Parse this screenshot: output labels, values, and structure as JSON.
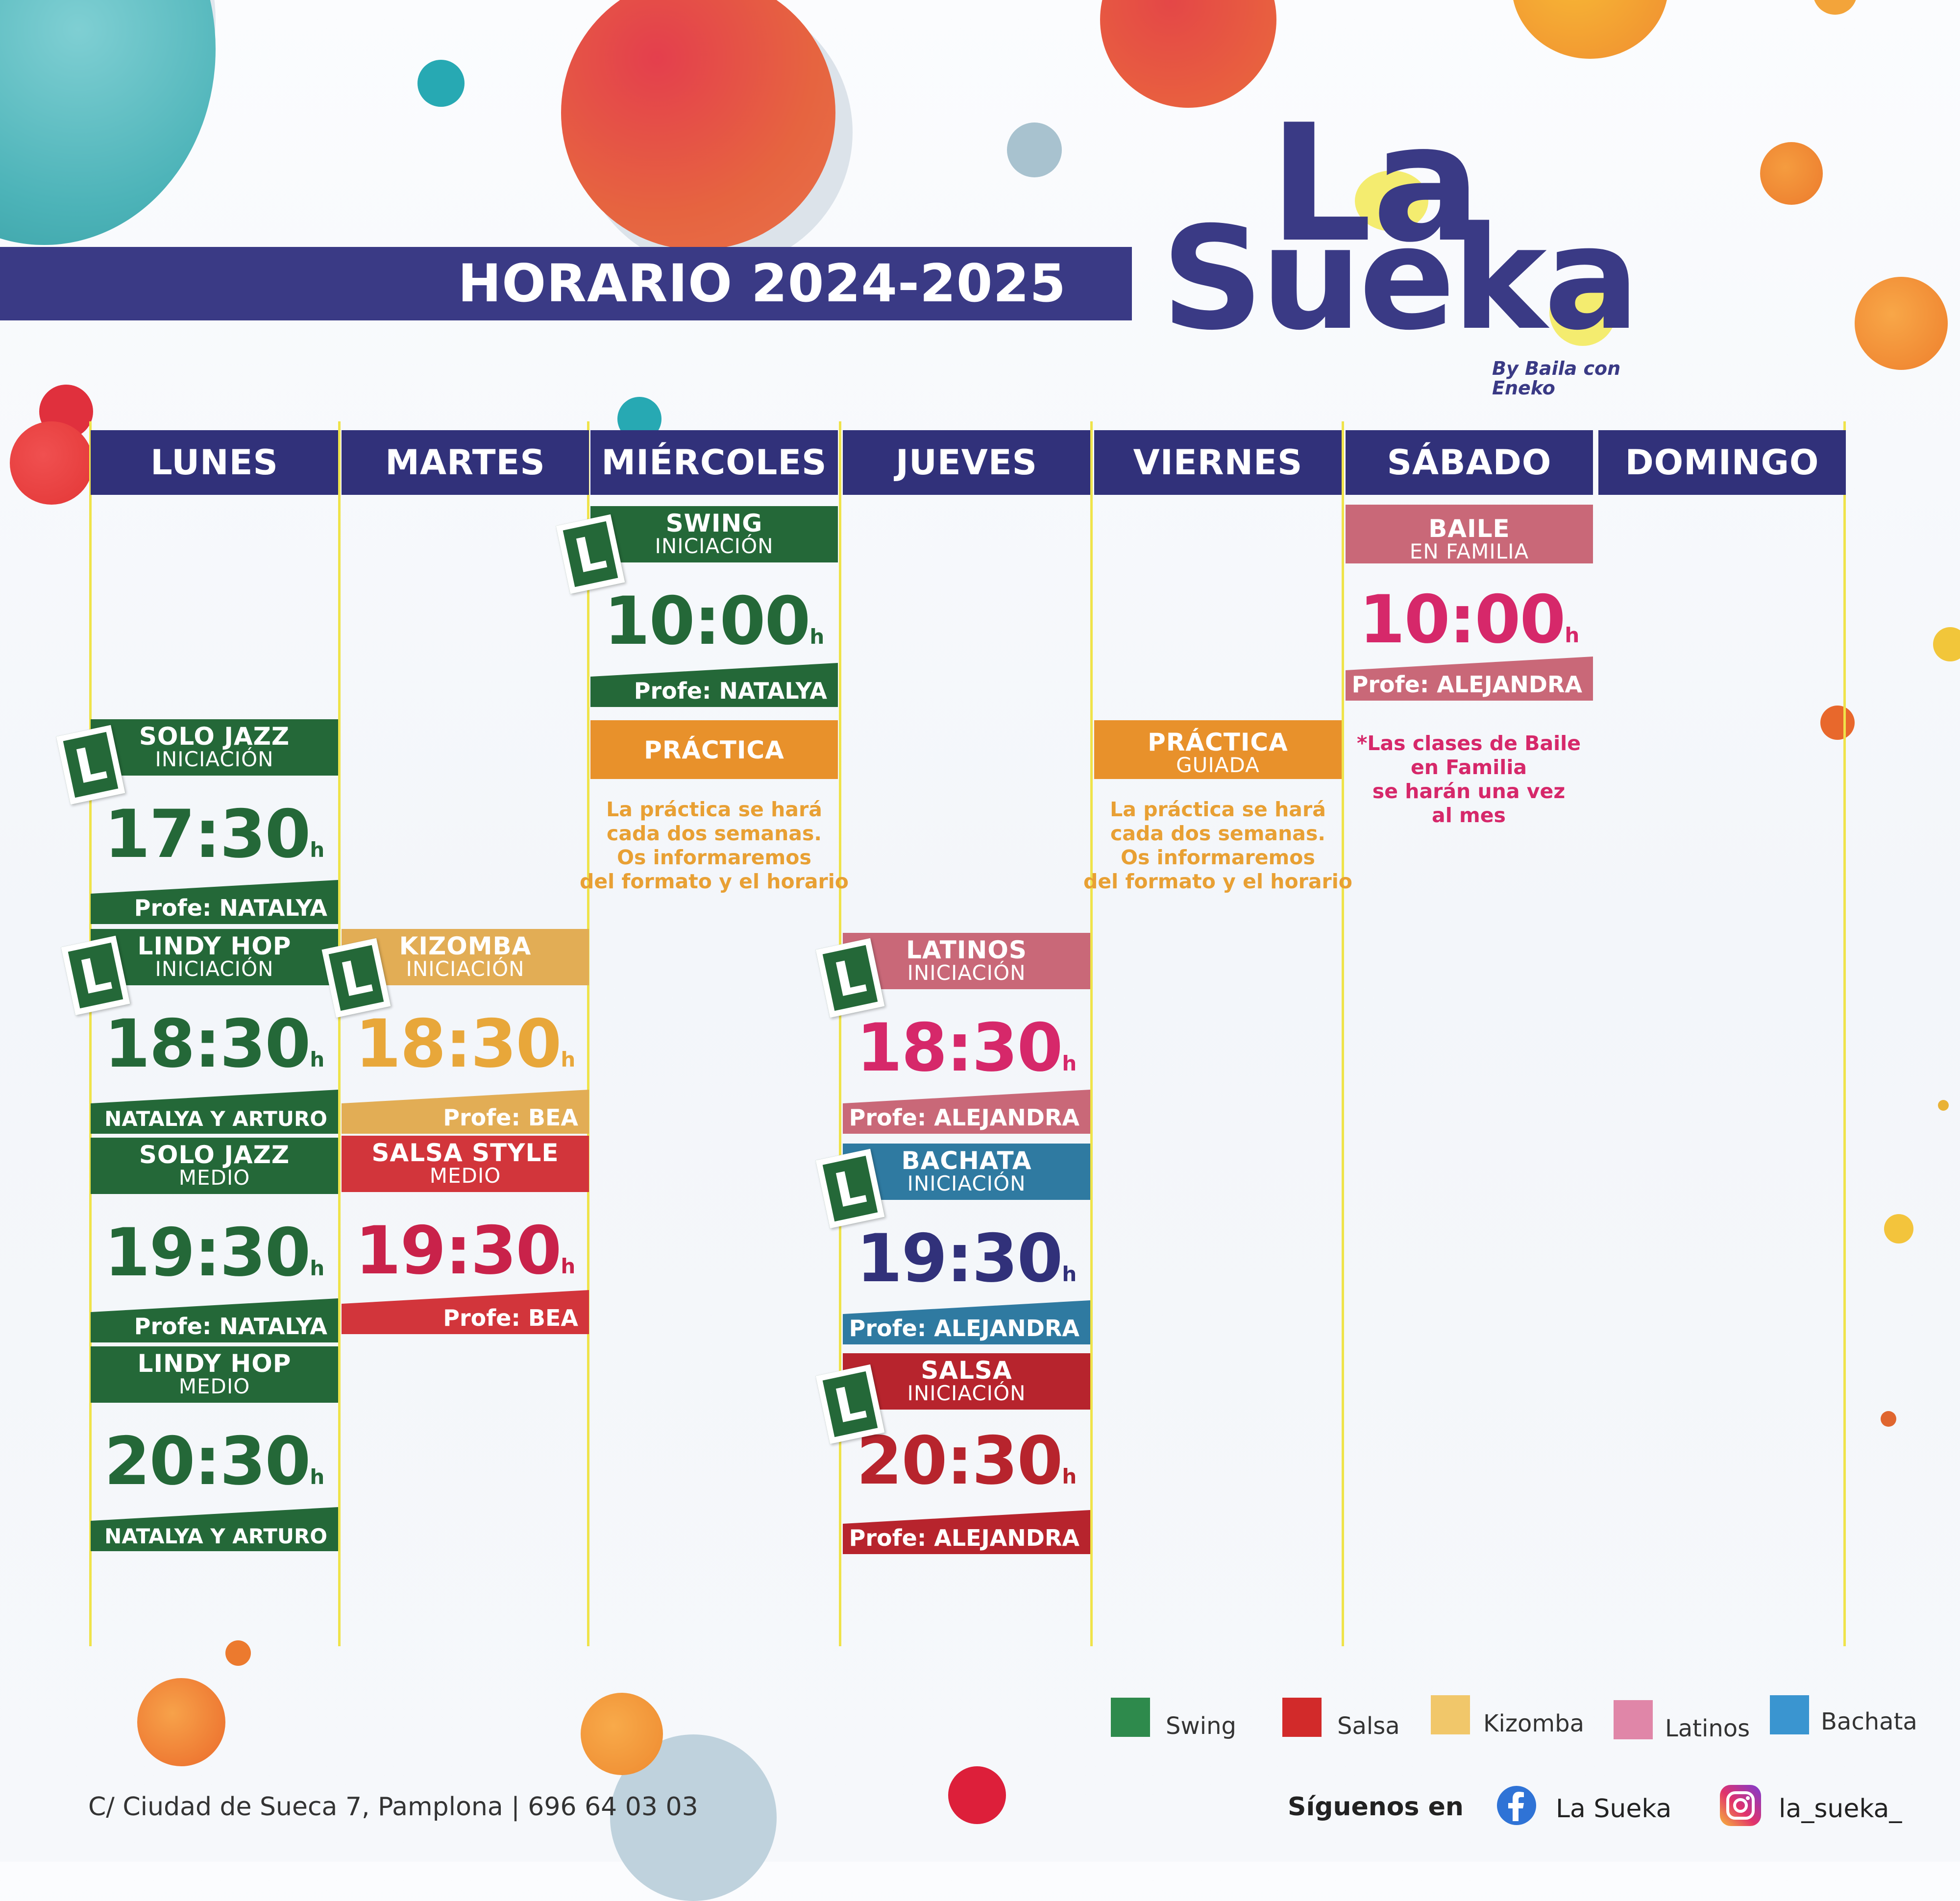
{
  "title": "HORARIO 2024-2025",
  "logo": {
    "line1": "La",
    "line2": "Sueka",
    "tagline": "By Baila con Eneko"
  },
  "days": [
    "LUNES",
    "MARTES",
    "MIÉRCOLES",
    "JUEVES",
    "VIERNES",
    "SÁBADO",
    "DOMINGO"
  ],
  "level_badge": "L",
  "classes": {
    "lun_1": {
      "name": "SOLO JAZZ",
      "level": "INICIACIÓN",
      "time": "17:30",
      "unit": "h",
      "teacher": "Profe: NATALYA"
    },
    "lun_2": {
      "name": "LINDY HOP",
      "level": "INICIACIÓN",
      "time": "18:30",
      "unit": "h",
      "teacher": "NATALYA Y ARTURO"
    },
    "lun_3": {
      "name": "SOLO JAZZ",
      "level": "MEDIO",
      "time": "19:30",
      "unit": "h",
      "teacher": "Profe: NATALYA"
    },
    "lun_4": {
      "name": "LINDY HOP",
      "level": "MEDIO",
      "time": "20:30",
      "unit": "h",
      "teacher": "NATALYA Y ARTURO"
    },
    "mar_1": {
      "name": "KIZOMBA",
      "level": "INICIACIÓN",
      "time": "18:30",
      "unit": "h",
      "teacher": "Profe: BEA"
    },
    "mar_2": {
      "name": "SALSA STYLE",
      "level": "MEDIO",
      "time": "19:30",
      "unit": "h",
      "teacher": "Profe: BEA"
    },
    "mie_1": {
      "name": "SWING",
      "level": "INICIACIÓN",
      "time": "10:00",
      "unit": "h",
      "teacher": "Profe: NATALYA"
    },
    "jue_1": {
      "name": "LATINOS",
      "level": "INICIACIÓN",
      "time": "18:30",
      "unit": "h",
      "teacher": "Profe: ALEJANDRA"
    },
    "jue_2": {
      "name": "BACHATA",
      "level": "INICIACIÓN",
      "time": "19:30",
      "unit": "h",
      "teacher": "Profe: ALEJANDRA"
    },
    "jue_3": {
      "name": "SALSA",
      "level": "INICIACIÓN",
      "time": "20:30",
      "unit": "h",
      "teacher": "Profe: ALEJANDRA"
    },
    "sab_1": {
      "name": "BAILE",
      "level": "EN FAMILIA",
      "time": "10:00",
      "unit": "h",
      "teacher": "Profe:  ALEJANDRA"
    }
  },
  "practica_mie": {
    "name": "PRÁCTICA",
    "note": [
      "La práctica se hará",
      "cada dos semanas.",
      "Os informaremos",
      "del formato y el horario"
    ]
  },
  "practica_vie": {
    "name": "PRÁCTICA",
    "level": "GUIADA",
    "note": [
      "La práctica se hará",
      "cada dos semanas.",
      "Os informaremos",
      "del formato y el horario"
    ]
  },
  "sab_note": [
    "*Las clases de Baile",
    "en Familia",
    "se harán una vez",
    "al mes"
  ],
  "legend": [
    {
      "label": "Swing",
      "color": "#2e8a4c"
    },
    {
      "label": "Salsa",
      "color": "#d22a2a"
    },
    {
      "label": "Kizomba",
      "color": "#f1c76a"
    },
    {
      "label": "Latinos",
      "color": "#e086a8"
    },
    {
      "label": "Bachata",
      "color": "#3a95d0"
    }
  ],
  "colors": {
    "swing": "#246838",
    "kizomba": "#e2ad55",
    "salsa": "#c32c36",
    "latinos": "#c96878",
    "bachata": "#2f7aa1",
    "practica": "#e8912b",
    "family": "#c96878",
    "accent_navy": "#31317a",
    "accent_pink": "#d6286a",
    "line": "#efe34a"
  },
  "footer": {
    "address": "C/ Ciudad de Sueca 7, Pamplona | 696 64 03 03",
    "follow": "Síguenos en",
    "facebook": "La Sueka",
    "instagram": "la_sueka_",
    "facebook_icon": "facebook-icon",
    "instagram_icon": "instagram-icon"
  }
}
